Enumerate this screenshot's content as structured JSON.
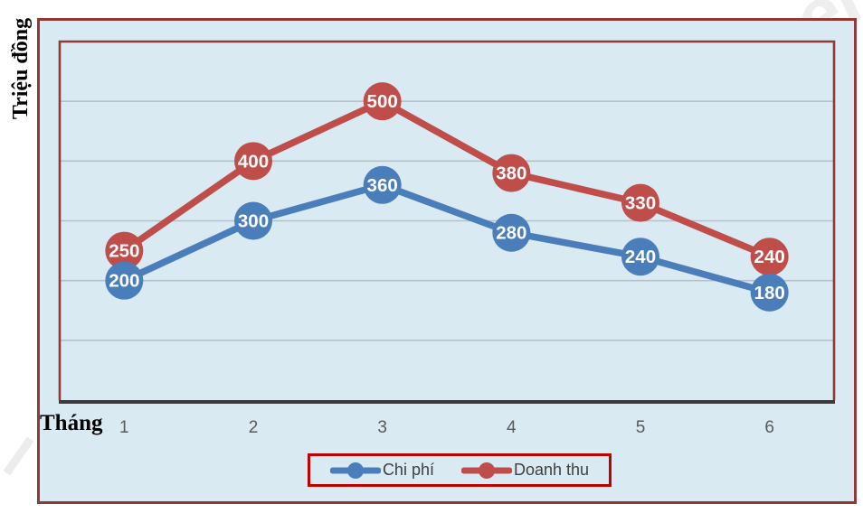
{
  "chart_data": {
    "type": "line",
    "title": "",
    "xlabel": "Tháng",
    "ylabel": "Triệu đồng",
    "categories": [
      "1",
      "2",
      "3",
      "4",
      "5",
      "6"
    ],
    "series": [
      {
        "name": "Chi phí",
        "color": "#4a7ebb",
        "values": [
          200,
          300,
          360,
          280,
          240,
          180
        ]
      },
      {
        "name": "Doanh thu",
        "color": "#bf4d4a",
        "values": [
          250,
          400,
          500,
          380,
          330,
          240
        ]
      }
    ],
    "ylim": [
      0,
      600
    ],
    "gridline_step": 100,
    "grid": true,
    "y_tick_labels_shown": false,
    "legend_position": "bottom",
    "data_labels": "values shown in circular markers on each point"
  },
  "styles": {
    "frame_border_color": "#8f3a37",
    "chart_background_color": "#d9eaf2",
    "plot_border_color": "#8f3a37",
    "gridline_color": "#b5c1ca",
    "axis_line_color": "#3a3a3a",
    "legend_border_color": "#c00000",
    "legend_text_color": "#3f3f3f",
    "tick_label_color": "#595959",
    "marker_label_color": "#ffffff"
  }
}
